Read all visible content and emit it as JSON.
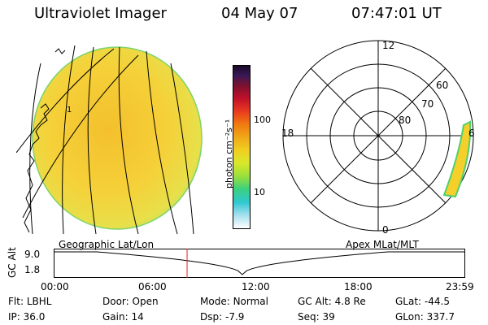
{
  "header": {
    "title": "Ultraviolet Imager",
    "date": "04 May 07",
    "time": "07:47:01 UT"
  },
  "colorbar": {
    "unit": "photon cm⁻²s⁻¹",
    "ticks": [
      "100",
      "10"
    ]
  },
  "polar": {
    "mlt_labels": {
      "top": "12",
      "left": "18",
      "right": "6",
      "bottom": "0"
    },
    "lat_labels": [
      "60",
      "70",
      "80"
    ]
  },
  "orbit": {
    "left_title": "Geographic Lat/Lon",
    "right_title": "Apex MLat/MLT",
    "axis_label": "GC Alt",
    "y_ticks": [
      "9.0",
      "1.8"
    ],
    "x_ticks": [
      "00:00",
      "06:00",
      "12:00",
      "18:00",
      "23:59"
    ],
    "current_time_hours": 7.78
  },
  "status": {
    "row1": [
      {
        "label": "Flt:",
        "value": "LBHL"
      },
      {
        "label": "Door:",
        "value": "Open"
      },
      {
        "label": "Mode:",
        "value": "Normal"
      },
      {
        "label": "GC Alt:",
        "value": "4.8 Re"
      },
      {
        "label": "GLat:",
        "value": "-44.5"
      }
    ],
    "row2": [
      {
        "label": "IP:",
        "value": "36.0"
      },
      {
        "label": "Gain:",
        "value": "14"
      },
      {
        "label": "Dsp:",
        "value": "-7.9"
      },
      {
        "label": "Seq:",
        "value": "39"
      },
      {
        "label": "GLon:",
        "value": "337.7"
      }
    ]
  },
  "colors": {
    "image_fill": "#f5cf2a",
    "image_edge": "#c9e34a",
    "rim": "#4fd06e"
  }
}
